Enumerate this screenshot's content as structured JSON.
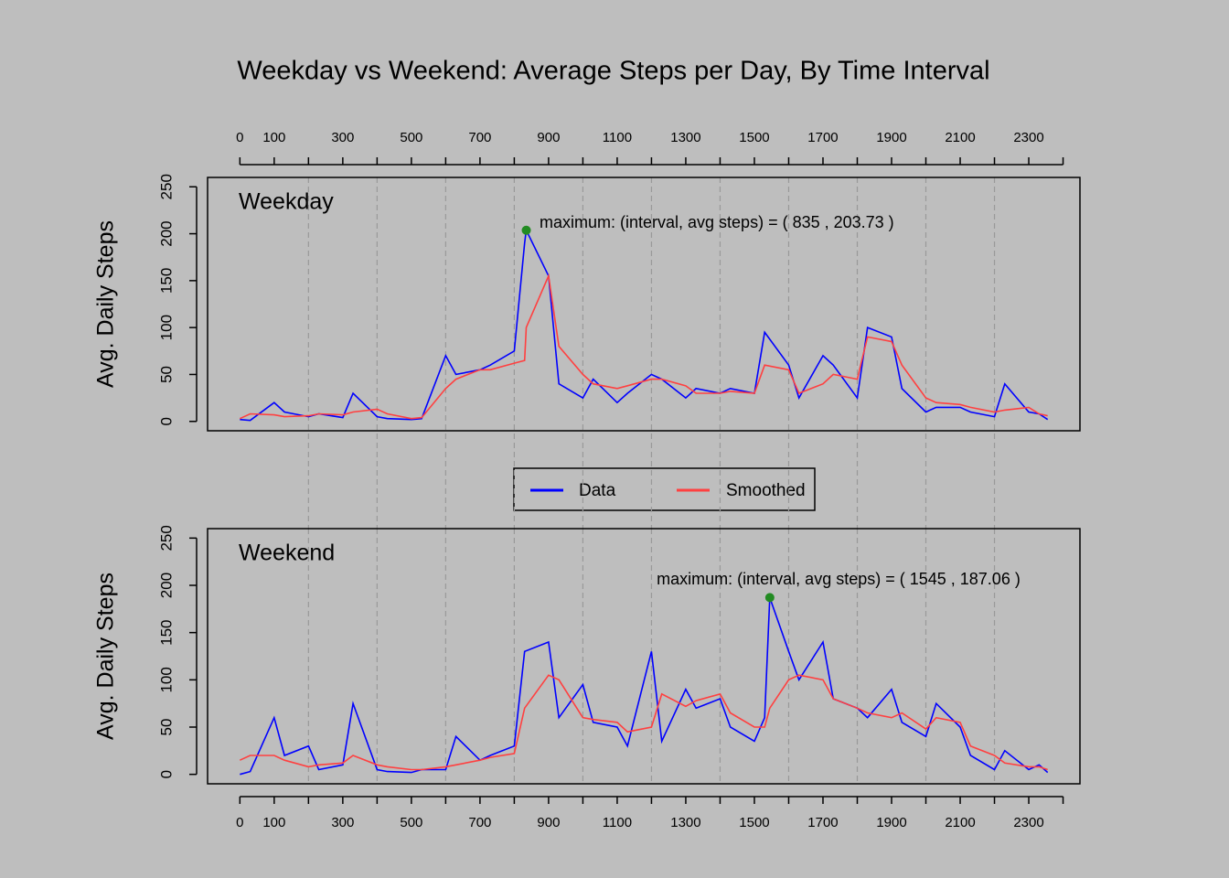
{
  "chart_data": [
    {
      "type": "line",
      "title": "Weekday vs Weekend: Average Steps per Day, By Time Interval",
      "panel_label": "Weekday",
      "ylabel": "Avg. Daily Steps",
      "x": [
        0,
        30,
        100,
        130,
        200,
        230,
        300,
        330,
        400,
        430,
        500,
        530,
        600,
        630,
        700,
        730,
        800,
        830,
        835,
        900,
        930,
        1000,
        1030,
        1100,
        1130,
        1200,
        1230,
        1300,
        1330,
        1400,
        1430,
        1500,
        1530,
        1600,
        1630,
        1700,
        1730,
        1800,
        1830,
        1900,
        1930,
        2000,
        2030,
        2100,
        2130,
        2200,
        2230,
        2300,
        2330,
        2355
      ],
      "series": [
        {
          "name": "Data",
          "color": "#0000ff",
          "values": [
            2,
            1,
            20,
            10,
            5,
            8,
            4,
            30,
            5,
            3,
            2,
            3,
            70,
            50,
            55,
            60,
            75,
            190,
            203.73,
            155,
            40,
            25,
            45,
            20,
            30,
            50,
            45,
            25,
            35,
            30,
            35,
            30,
            95,
            60,
            25,
            70,
            60,
            25,
            100,
            90,
            35,
            10,
            15,
            15,
            10,
            5,
            40,
            10,
            8,
            2
          ]
        },
        {
          "name": "Smoothed",
          "color": "#ff4040",
          "values": [
            3,
            8,
            7,
            5,
            6,
            8,
            7,
            10,
            13,
            8,
            3,
            4,
            35,
            45,
            55,
            55,
            62,
            65,
            100,
            155,
            80,
            50,
            40,
            35,
            38,
            45,
            45,
            38,
            30,
            30,
            32,
            30,
            60,
            55,
            30,
            40,
            50,
            45,
            90,
            85,
            60,
            25,
            20,
            18,
            15,
            10,
            12,
            15,
            8,
            6
          ]
        }
      ],
      "max_point": {
        "x": 835,
        "y": 203.73,
        "color": "#228b22"
      },
      "annotation": "maximum: (interval, avg steps) = ( 835 ,  203.73 )",
      "xlim": [
        -94.2,
        2449.2
      ],
      "ylim": [
        -10,
        260
      ],
      "xticks": [
        0,
        100,
        300,
        500,
        700,
        900,
        1100,
        1300,
        1500,
        1700,
        1900,
        2100,
        2300
      ],
      "xminor_ticks": [
        200,
        400,
        600,
        800,
        1000,
        1200,
        1400,
        1600,
        1800,
        2000,
        2200,
        2400
      ],
      "yticks": [
        0,
        50,
        100,
        150,
        200,
        250
      ],
      "xgrid": [
        200,
        400,
        600,
        800,
        1000,
        1200,
        1400,
        1600,
        1800,
        2000,
        2200
      ]
    },
    {
      "type": "line",
      "panel_label": "Weekend",
      "ylabel": "Avg. Daily Steps",
      "x": [
        0,
        30,
        100,
        130,
        200,
        230,
        300,
        330,
        400,
        430,
        500,
        530,
        600,
        630,
        700,
        730,
        800,
        830,
        900,
        930,
        1000,
        1030,
        1100,
        1130,
        1200,
        1230,
        1300,
        1330,
        1400,
        1430,
        1500,
        1530,
        1545,
        1600,
        1630,
        1700,
        1730,
        1800,
        1830,
        1900,
        1930,
        2000,
        2030,
        2100,
        2130,
        2200,
        2230,
        2300,
        2330,
        2355
      ],
      "series": [
        {
          "color": "#0000ff",
          "values": [
            0,
            3,
            60,
            20,
            30,
            5,
            10,
            75,
            5,
            3,
            2,
            5,
            5,
            40,
            15,
            20,
            30,
            130,
            140,
            60,
            95,
            55,
            50,
            30,
            130,
            35,
            90,
            70,
            80,
            50,
            35,
            60,
            187.06,
            130,
            100,
            140,
            80,
            70,
            60,
            90,
            55,
            40,
            75,
            50,
            20,
            5,
            25,
            5,
            10,
            2
          ]
        },
        {
          "color": "#ff4040",
          "values": [
            15,
            20,
            20,
            15,
            8,
            10,
            12,
            20,
            10,
            8,
            5,
            5,
            8,
            10,
            15,
            18,
            22,
            70,
            105,
            100,
            60,
            58,
            55,
            45,
            50,
            85,
            72,
            78,
            85,
            65,
            50,
            50,
            70,
            100,
            105,
            100,
            80,
            70,
            65,
            60,
            65,
            48,
            60,
            55,
            30,
            20,
            12,
            8,
            8,
            5
          ]
        }
      ],
      "max_point": {
        "x": 1545,
        "y": 187.06,
        "color": "#228b22"
      },
      "annotation": "maximum: (interval, avg steps) = ( 1545 ,  187.06 )",
      "xlim": [
        -94.2,
        2449.2
      ],
      "ylim": [
        -10,
        260
      ],
      "xticks": [
        0,
        100,
        300,
        500,
        700,
        900,
        1100,
        1300,
        1500,
        1700,
        1900,
        2100,
        2300
      ],
      "xminor_ticks": [
        200,
        400,
        600,
        800,
        1000,
        1200,
        1400,
        1600,
        1800,
        2000,
        2200,
        2400
      ],
      "yticks": [
        0,
        50,
        100,
        150,
        200,
        250
      ],
      "xgrid": [
        200,
        400,
        600,
        800,
        1000,
        1200,
        1400,
        1600,
        1800,
        2000,
        2200
      ]
    }
  ]
}
